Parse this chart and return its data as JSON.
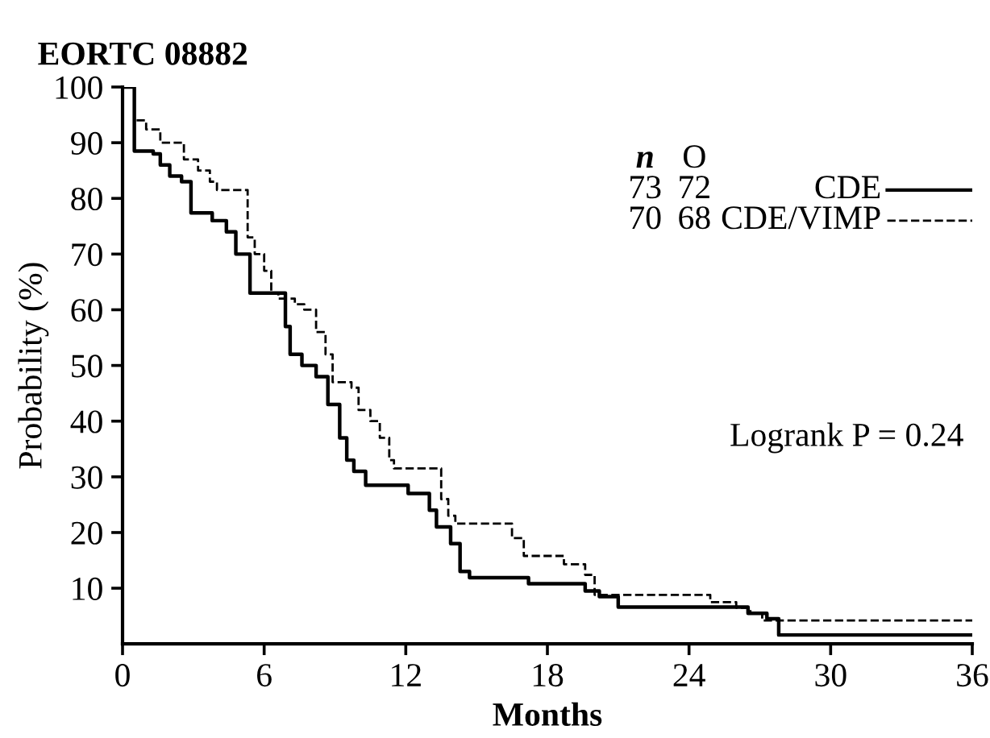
{
  "chart_data": {
    "type": "step",
    "title": "EORTC 08882",
    "xlabel": "Months",
    "ylabel": "Probability (%)",
    "xlim": [
      0,
      36
    ],
    "xticks": [
      0,
      6,
      12,
      18,
      24,
      30,
      36
    ],
    "ylim": [
      0,
      100
    ],
    "yticks": [
      10,
      20,
      30,
      40,
      50,
      60,
      70,
      80,
      90,
      100
    ],
    "grid": false,
    "legend": "top right",
    "annotations": [
      "n",
      "O",
      "73",
      "72",
      "70",
      "68",
      "Logrank P = 0.24"
    ],
    "series": [
      {
        "name": "CDE",
        "color": "#000000",
        "line_style": "solid",
        "x": [
          0,
          0.5,
          1.3,
          1.6,
          2.0,
          2.5,
          2.9,
          3.8,
          4.4,
          4.8,
          5.4,
          6.9,
          7.1,
          7.6,
          8.2,
          8.7,
          9.2,
          9.5,
          9.8,
          10.3,
          12.1,
          13.0,
          13.3,
          13.9,
          14.3,
          14.7,
          17.2,
          19.6,
          20.2,
          21.0,
          26.5,
          27.3,
          27.8,
          36
        ],
        "values": [
          100,
          88.5,
          88,
          86,
          84,
          83,
          77.4,
          76,
          74,
          70,
          63,
          57,
          52,
          50,
          48,
          43,
          37,
          33,
          31,
          28.5,
          27,
          24,
          21,
          18,
          13,
          11.9,
          10.8,
          9.5,
          8.5,
          6.6,
          5.5,
          4.5,
          1.6,
          1.6
        ]
      },
      {
        "name": "CDE/VIMP",
        "color": "#000000",
        "line_style": "dashed",
        "x": [
          0,
          0.5,
          1.0,
          1.6,
          2.6,
          3.2,
          3.7,
          4.0,
          5.3,
          5.6,
          6.0,
          6.3,
          6.6,
          7.3,
          7.7,
          8.2,
          8.6,
          8.9,
          9.7,
          10.0,
          10.5,
          10.9,
          11.3,
          11.5,
          13.5,
          13.8,
          14.1,
          16.5,
          17.0,
          18.7,
          19.6,
          20.0,
          24.9,
          26.0,
          26.6,
          27.1,
          36
        ],
        "values": [
          100,
          94,
          92.4,
          90,
          87,
          85,
          83,
          81.5,
          73,
          70,
          67,
          63,
          62,
          61,
          60,
          56,
          52,
          47,
          46,
          42,
          40,
          37,
          33,
          31.5,
          26,
          23,
          21.6,
          19,
          15.8,
          14.3,
          12.4,
          8.8,
          7.5,
          6.5,
          5.5,
          4.2,
          4.2
        ]
      }
    ]
  }
}
